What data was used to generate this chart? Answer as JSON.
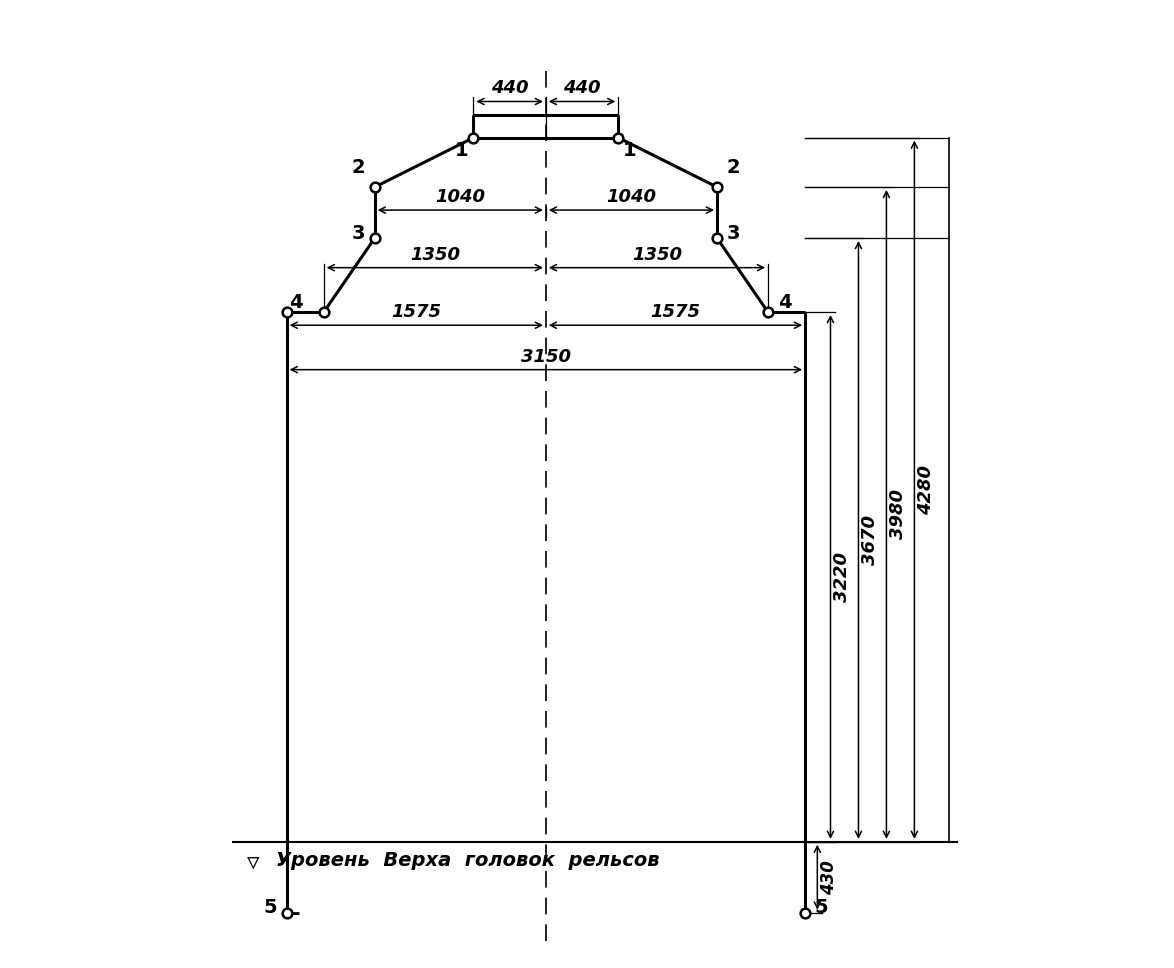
{
  "background_color": "#ffffff",
  "line_color": "#000000",
  "line_width": 2.2,
  "rail_level_label": "Уровень  Верха  головок  рельсов",
  "points": {
    "1L": [
      -440,
      4280
    ],
    "1R": [
      440,
      4280
    ],
    "2L": [
      -1040,
      3980
    ],
    "2R": [
      1040,
      3980
    ],
    "3L": [
      -1040,
      3670
    ],
    "3R": [
      1040,
      3670
    ],
    "4L": [
      -1350,
      3220
    ],
    "4R": [
      1350,
      3220
    ],
    "4Lwall": [
      -1575,
      3220
    ],
    "4Rwall": [
      1575,
      3220
    ],
    "5L": [
      -1575,
      -430
    ],
    "5R": [
      1575,
      -430
    ]
  },
  "top_bar_y": 4420,
  "top_bar_xl": -440,
  "top_bar_xr": 440,
  "font_size": 13,
  "figsize": [
    11.74,
    9.68
  ],
  "dpi": 100,
  "xlim": [
    -2100,
    2600
  ],
  "ylim": [
    -750,
    5100
  ]
}
